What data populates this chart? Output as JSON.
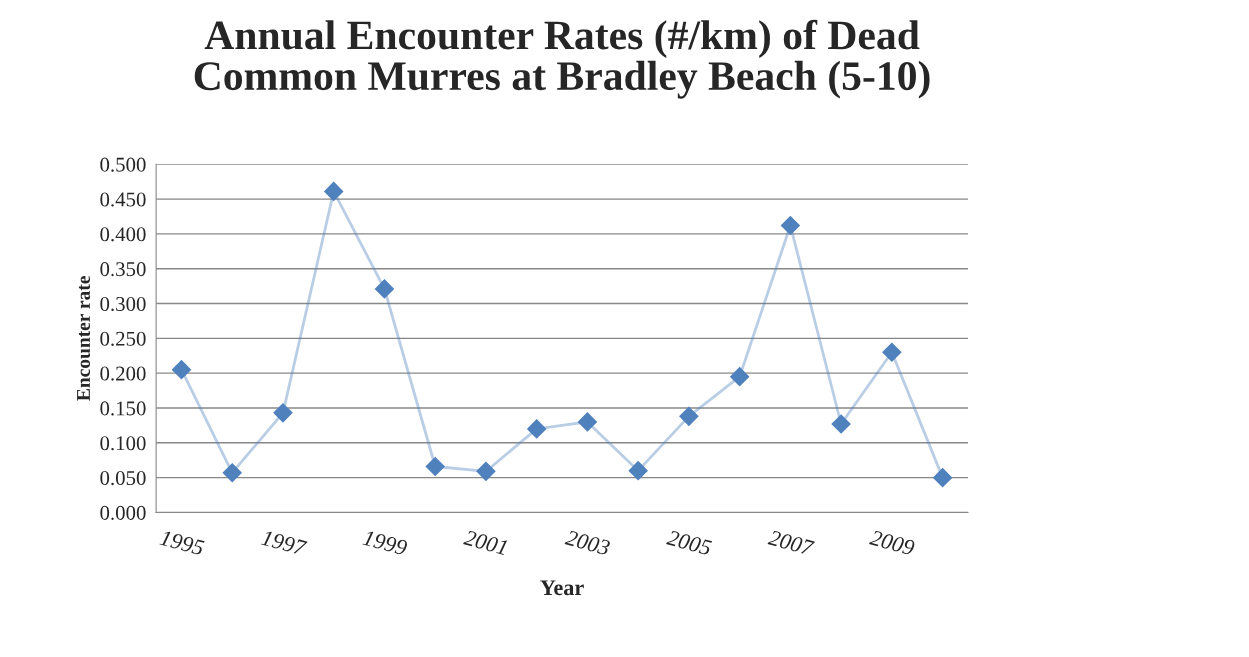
{
  "chart_data": {
    "type": "line",
    "title": "Annual Encounter Rates (#/km) of Dead\nCommon Murres at Bradley Beach (5-10)",
    "xlabel": "Year",
    "ylabel": "Encounter rate",
    "categories": [
      "1995",
      null,
      "1997",
      null,
      "1999",
      null,
      "2001",
      null,
      "2003",
      null,
      "2005",
      null,
      "2007",
      null,
      "2009",
      null
    ],
    "series": [
      {
        "color": "#4f81bd",
        "values": [
          0.205,
          0.057,
          0.143,
          0.461,
          0.321,
          0.066,
          0.059,
          0.12,
          0.13,
          0.06,
          0.138,
          0.195,
          0.412,
          0.127,
          0.23,
          0.05
        ]
      }
    ],
    "ylim": [
      0,
      0.5
    ],
    "yticks": [
      {
        "value": 0,
        "label": "0.000"
      },
      {
        "value": 0.05,
        "label": "0.050"
      },
      {
        "value": 0.1,
        "label": "0.100"
      },
      {
        "value": 0.15,
        "label": "0.150"
      },
      {
        "value": 0.2,
        "label": "0.200"
      },
      {
        "value": 0.25,
        "label": "0.250"
      },
      {
        "value": 0.3,
        "label": "0.300"
      },
      {
        "value": 0.35,
        "label": "0.350"
      },
      {
        "value": 0.4,
        "label": "0.400"
      },
      {
        "value": 0.45,
        "label": "0.450"
      },
      {
        "value": 0.5,
        "label": "0.500"
      }
    ],
    "grid": "y",
    "marker": "diamond",
    "line_style": "solid",
    "legend": false
  }
}
